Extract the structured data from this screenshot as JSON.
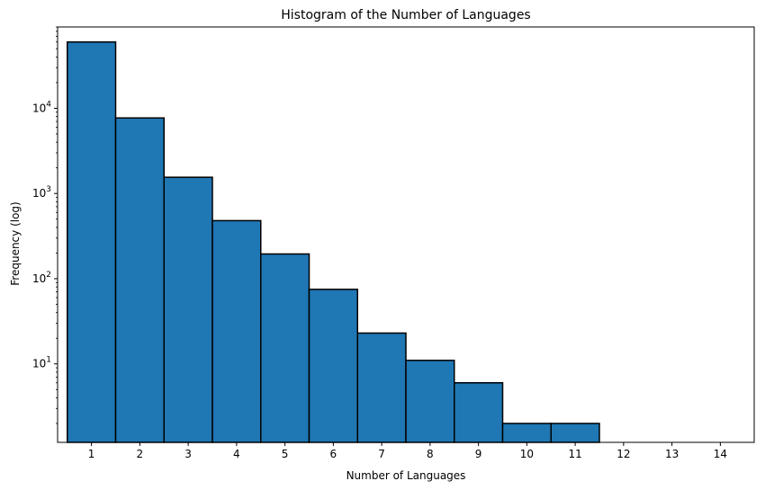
{
  "chart_data": {
    "type": "bar",
    "title": "Histogram of the Number of Languages",
    "xlabel": "Number of Languages",
    "ylabel": "Frequency (log)",
    "categories": [
      "1",
      "2",
      "3",
      "4",
      "5",
      "6",
      "7",
      "8",
      "9",
      "10",
      "11",
      "12",
      "13",
      "14"
    ],
    "values": [
      60000,
      7700,
      1550,
      480,
      195,
      75,
      23,
      11,
      6,
      2,
      2,
      0,
      0,
      0
    ],
    "yscale": "log",
    "ylim": [
      1.2,
      90000
    ],
    "xlim": [
      -0.2,
      14.2
    ],
    "y_ticks": [
      {
        "value": 10,
        "base": "10",
        "exp": "1"
      },
      {
        "value": 100,
        "base": "10",
        "exp": "2"
      },
      {
        "value": 1000,
        "base": "10",
        "exp": "3"
      },
      {
        "value": 10000,
        "base": "10",
        "exp": "4"
      }
    ],
    "grid": false,
    "bar_color": "#1f77b4",
    "edge_color": "#000000"
  }
}
